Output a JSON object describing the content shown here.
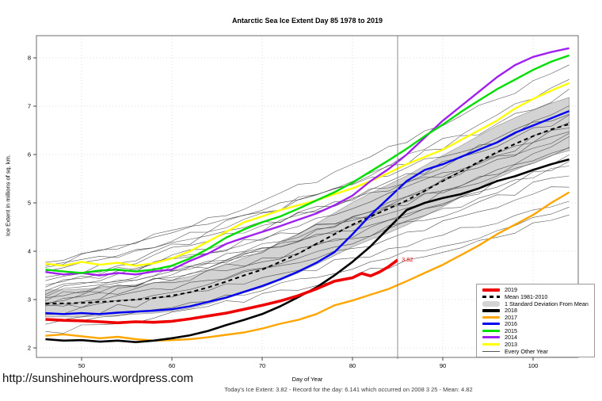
{
  "title": "Antarctic Sea Ice Extent Day 85 1978 to 2019",
  "footer_url": "http://sunshinehours.wordpress.com",
  "caption": "Today's Ice Extent: 3.82  - Record for the day: 6.141 which occurred on 2008 3 25  - Mean: 4.82",
  "annotation": {
    "text": "3.82",
    "day": 85,
    "value": 3.82,
    "color": "#ee0000"
  },
  "marker": {
    "day": 85,
    "color": "#8c8c8c"
  },
  "axes": {
    "x": {
      "label": "Day of Year",
      "ticks": [
        50,
        60,
        70,
        80,
        90,
        100
      ],
      "range": [
        45,
        105
      ]
    },
    "y": {
      "label": "Ice Extent in millions of sq. km.",
      "ticks": [
        2,
        3,
        4,
        5,
        6,
        7,
        8
      ],
      "range": [
        1.803,
        8.459
      ]
    }
  },
  "legend": {
    "items": [
      {
        "label": "2019",
        "type": "thick",
        "color": "#ee0000"
      },
      {
        "label": "Mean 1981-2010",
        "type": "dashed",
        "color": "#000000"
      },
      {
        "label": "1 Standard Deviation From Mean",
        "type": "band",
        "color": "#d3d3d3"
      },
      {
        "label": "2018",
        "type": "thick",
        "color": "#000000"
      },
      {
        "label": "2017",
        "type": "line",
        "color": "#ffa500"
      },
      {
        "label": "2016",
        "type": "line",
        "color": "#0000f0"
      },
      {
        "label": "2015",
        "type": "line",
        "color": "#00dd00"
      },
      {
        "label": "2014",
        "type": "line",
        "color": "#a020f0"
      },
      {
        "label": "2013",
        "type": "line",
        "color": "#ffff00"
      },
      {
        "label": "Every Other Year",
        "type": "thin",
        "color": "#555555"
      }
    ]
  },
  "chart_data": {
    "type": "line",
    "title": "Antarctic Sea Ice Extent Day 85 1978 to 2019",
    "xlabel": "Day of Year",
    "ylabel": "Ice Extent in millions of sq. km.",
    "xlim": [
      45,
      105
    ],
    "ylim": [
      1.8,
      8.46
    ],
    "grid": "dotted",
    "legend_position": "bottom-right",
    "x": [
      46,
      48,
      50,
      52,
      54,
      56,
      58,
      60,
      62,
      64,
      66,
      68,
      70,
      72,
      74,
      76,
      78,
      80,
      82,
      84,
      86,
      88,
      90,
      92,
      94,
      96,
      98,
      100,
      102,
      104
    ],
    "band": {
      "name": "1 Standard Deviation From Mean",
      "fill": "#d3d3d3",
      "upper": [
        3.2,
        3.2,
        3.22,
        3.24,
        3.27,
        3.3,
        3.34,
        3.4,
        3.48,
        3.59,
        3.72,
        3.86,
        3.99,
        4.16,
        4.35,
        4.57,
        4.79,
        5.01,
        5.2,
        5.38,
        5.56,
        5.77,
        5.98,
        6.18,
        6.39,
        6.59,
        6.76,
        6.92,
        7.06,
        7.18
      ],
      "lower": [
        2.64,
        2.64,
        2.64,
        2.66,
        2.67,
        2.7,
        2.72,
        2.76,
        2.82,
        2.91,
        3.02,
        3.14,
        3.25,
        3.4,
        3.55,
        3.73,
        3.91,
        4.09,
        4.24,
        4.38,
        4.54,
        4.73,
        4.92,
        5.12,
        5.31,
        5.51,
        5.68,
        5.84,
        5.98,
        6.08
      ]
    },
    "series": [
      {
        "name": "Mean 1981-2010",
        "color": "#000000",
        "width": 2,
        "dash": "5,4",
        "values": [
          2.92,
          2.92,
          2.93,
          2.95,
          2.97,
          3.0,
          3.03,
          3.08,
          3.15,
          3.25,
          3.37,
          3.5,
          3.62,
          3.78,
          3.95,
          4.15,
          4.35,
          4.55,
          4.72,
          4.88,
          5.05,
          5.25,
          5.45,
          5.65,
          5.85,
          6.05,
          6.22,
          6.38,
          6.52,
          6.63
        ]
      },
      {
        "name": "2013",
        "color": "#ffff00",
        "width": 2.4,
        "values": [
          3.74,
          3.7,
          3.78,
          3.72,
          3.76,
          3.7,
          3.75,
          3.85,
          4.0,
          4.2,
          4.4,
          4.6,
          4.72,
          4.85,
          4.95,
          5.05,
          5.18,
          5.3,
          5.45,
          5.62,
          5.8,
          5.95,
          6.1,
          6.3,
          6.5,
          6.7,
          6.95,
          7.15,
          7.32,
          7.48
        ]
      },
      {
        "name": "2014",
        "color": "#a020f0",
        "width": 2.4,
        "values": [
          3.57,
          3.52,
          3.55,
          3.5,
          3.55,
          3.52,
          3.58,
          3.62,
          3.8,
          3.95,
          4.15,
          4.28,
          4.4,
          4.52,
          4.65,
          4.78,
          4.95,
          5.15,
          5.45,
          5.7,
          6.0,
          6.35,
          6.7,
          7.0,
          7.3,
          7.6,
          7.85,
          8.02,
          8.12,
          8.2
        ]
      },
      {
        "name": "2015",
        "color": "#00dd00",
        "width": 2.4,
        "values": [
          3.62,
          3.58,
          3.55,
          3.6,
          3.62,
          3.58,
          3.62,
          3.7,
          3.85,
          4.05,
          4.28,
          4.45,
          4.6,
          4.72,
          4.88,
          5.05,
          5.22,
          5.42,
          5.65,
          5.88,
          6.12,
          6.38,
          6.62,
          6.88,
          7.12,
          7.35,
          7.55,
          7.75,
          7.92,
          8.05
        ]
      },
      {
        "name": "2016",
        "color": "#0000f0",
        "width": 2.4,
        "values": [
          2.72,
          2.7,
          2.72,
          2.7,
          2.73,
          2.75,
          2.77,
          2.8,
          2.86,
          2.95,
          3.04,
          3.16,
          3.28,
          3.42,
          3.58,
          3.76,
          3.98,
          4.35,
          4.75,
          5.1,
          5.45,
          5.68,
          5.8,
          5.95,
          6.1,
          6.25,
          6.45,
          6.6,
          6.75,
          6.9
        ]
      },
      {
        "name": "2017",
        "color": "#ffa500",
        "width": 2.4,
        "values": [
          2.25,
          2.28,
          2.24,
          2.2,
          2.23,
          2.18,
          2.15,
          2.16,
          2.18,
          2.22,
          2.27,
          2.32,
          2.4,
          2.5,
          2.58,
          2.7,
          2.88,
          2.98,
          3.1,
          3.22,
          3.38,
          3.55,
          3.72,
          3.92,
          4.12,
          4.35,
          4.55,
          4.75,
          5.0,
          5.22
        ]
      },
      {
        "name": "2018",
        "color": "#000000",
        "width": 2.6,
        "values": [
          2.18,
          2.15,
          2.16,
          2.13,
          2.15,
          2.12,
          2.15,
          2.2,
          2.26,
          2.35,
          2.47,
          2.58,
          2.7,
          2.86,
          3.05,
          3.25,
          3.5,
          3.78,
          4.1,
          4.48,
          4.85,
          5.0,
          5.1,
          5.18,
          5.3,
          5.45,
          5.55,
          5.68,
          5.8,
          5.9
        ]
      },
      {
        "name": "2019",
        "color": "#ee0000",
        "width": 3.6,
        "x": [
          46,
          48,
          50,
          52,
          54,
          56,
          58,
          60,
          62,
          64,
          66,
          68,
          70,
          72,
          74,
          76,
          78,
          80,
          81,
          82,
          83,
          84,
          85
        ],
        "values": [
          2.59,
          2.57,
          2.56,
          2.54,
          2.52,
          2.54,
          2.53,
          2.55,
          2.6,
          2.66,
          2.72,
          2.8,
          2.88,
          2.97,
          3.08,
          3.22,
          3.38,
          3.45,
          3.54,
          3.49,
          3.57,
          3.68,
          3.82
        ]
      }
    ],
    "background_years": {
      "name": "Every Other Year",
      "color": "#3a3a3a",
      "width": 0.6,
      "lines": [
        {
          "start": 3.8,
          "mid": 4.9,
          "end": 6.9
        },
        {
          "start": 3.65,
          "mid": 4.6,
          "end": 6.4
        },
        {
          "start": 3.55,
          "mid": 4.8,
          "end": 7.3
        },
        {
          "start": 3.4,
          "mid": 4.5,
          "end": 6.8
        },
        {
          "start": 3.3,
          "mid": 4.2,
          "end": 6.1
        },
        {
          "start": 3.25,
          "mid": 4.4,
          "end": 7.0
        },
        {
          "start": 3.2,
          "mid": 4.0,
          "end": 5.8
        },
        {
          "start": 3.15,
          "mid": 4.3,
          "end": 6.6
        },
        {
          "start": 3.1,
          "mid": 3.9,
          "end": 6.2
        },
        {
          "start": 3.05,
          "mid": 4.1,
          "end": 6.5
        },
        {
          "start": 3.0,
          "mid": 3.8,
          "end": 5.6
        },
        {
          "start": 2.95,
          "mid": 4.0,
          "end": 6.3
        },
        {
          "start": 2.9,
          "mid": 3.7,
          "end": 6.0
        },
        {
          "start": 2.85,
          "mid": 3.9,
          "end": 6.7
        },
        {
          "start": 2.8,
          "mid": 3.6,
          "end": 5.4
        },
        {
          "start": 2.7,
          "mid": 3.5,
          "end": 5.9
        },
        {
          "start": 2.6,
          "mid": 3.4,
          "end": 5.1
        },
        {
          "start": 2.45,
          "mid": 3.2,
          "end": 4.9
        },
        {
          "start": 2.3,
          "mid": 3.0,
          "end": 4.8
        },
        {
          "start": 3.35,
          "mid": 4.7,
          "end": 7.6
        },
        {
          "start": 3.7,
          "mid": 5.0,
          "end": 7.9
        }
      ]
    }
  }
}
